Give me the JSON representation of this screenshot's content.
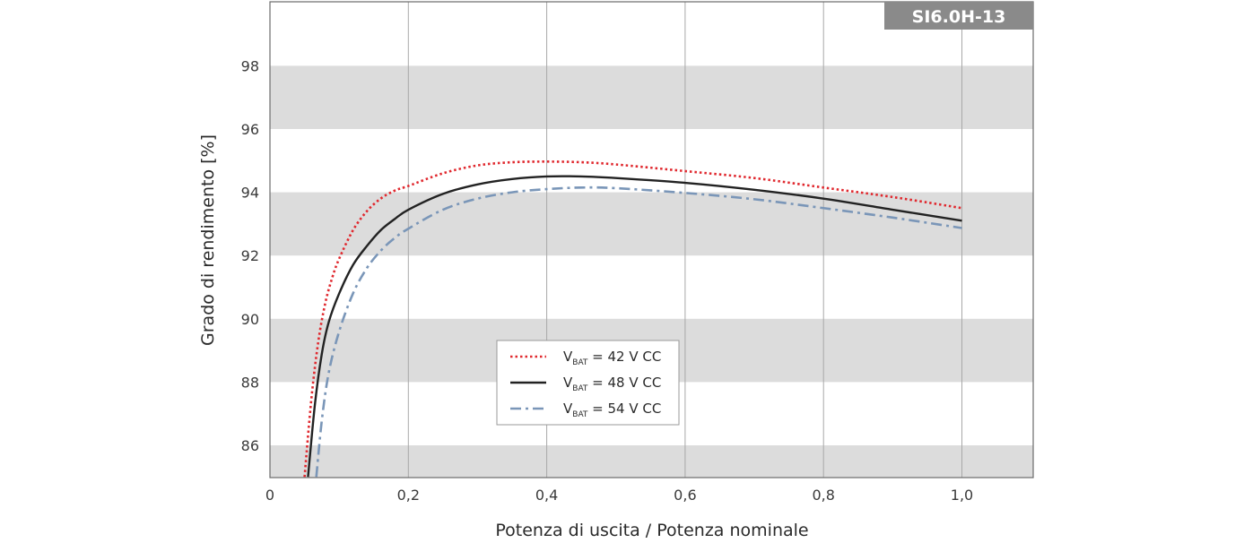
{
  "chart_data": {
    "type": "line",
    "title": "",
    "badge": "SI6.0H-13",
    "xlabel": "Potenza di uscita / Potenza nominale",
    "ylabel": "Grado di rendimento [%]",
    "xlim": [
      0,
      1.1
    ],
    "ylim": [
      85,
      100
    ],
    "x_ticks": [
      0,
      0.2,
      0.4,
      0.6,
      0.8,
      1.0
    ],
    "x_tick_labels": [
      "0",
      "0,2",
      "0,4",
      "0,6",
      "0,8",
      "1,0"
    ],
    "y_ticks": [
      86,
      88,
      90,
      92,
      94,
      96,
      98
    ],
    "y_tick_labels": [
      "86",
      "88",
      "90",
      "92",
      "94",
      "96",
      "98"
    ],
    "grid": "vertical lines, horizontal bands",
    "band_color": "#dcdcdc",
    "legend_position": "center-left",
    "series": [
      {
        "name": "= 42 V CC",
        "label_main": "V",
        "label_sub": "BAT",
        "label_rest": " = 42 V CC",
        "color": "#e0282e",
        "style": "dotted",
        "x": [
          0.05,
          0.06,
          0.07,
          0.08,
          0.09,
          0.1,
          0.12,
          0.14,
          0.16,
          0.18,
          0.2,
          0.25,
          0.3,
          0.35,
          0.4,
          0.45,
          0.5,
          0.6,
          0.7,
          0.8,
          0.9,
          1.0
        ],
        "y": [
          85.0,
          87.5,
          89.3,
          90.5,
          91.3,
          91.9,
          92.8,
          93.4,
          93.8,
          94.05,
          94.2,
          94.6,
          94.85,
          94.95,
          94.97,
          94.95,
          94.88,
          94.67,
          94.45,
          94.15,
          93.85,
          93.5
        ]
      },
      {
        "name": "= 48 V CC",
        "label_main": "V",
        "label_sub": "BAT",
        "label_rest": " = 48 V CC",
        "color": "#222222",
        "style": "solid",
        "x": [
          0.055,
          0.065,
          0.075,
          0.085,
          0.1,
          0.12,
          0.14,
          0.16,
          0.18,
          0.2,
          0.25,
          0.3,
          0.35,
          0.4,
          0.45,
          0.5,
          0.6,
          0.7,
          0.8,
          0.9,
          1.0
        ],
        "y": [
          85.0,
          87.3,
          88.9,
          89.9,
          90.8,
          91.7,
          92.3,
          92.8,
          93.15,
          93.45,
          93.95,
          94.25,
          94.42,
          94.5,
          94.5,
          94.45,
          94.3,
          94.08,
          93.8,
          93.45,
          93.1
        ]
      },
      {
        "name": "= 54 V CC",
        "label_main": "V",
        "label_sub": "BAT",
        "label_rest": " = 54 V CC",
        "color": "#7a96b8",
        "style": "dashdot",
        "x": [
          0.067,
          0.075,
          0.085,
          0.1,
          0.12,
          0.14,
          0.16,
          0.18,
          0.2,
          0.25,
          0.3,
          0.35,
          0.4,
          0.45,
          0.5,
          0.6,
          0.7,
          0.8,
          0.9,
          1.0
        ],
        "y": [
          85.0,
          86.8,
          88.3,
          89.6,
          90.8,
          91.6,
          92.15,
          92.55,
          92.85,
          93.45,
          93.8,
          94.0,
          94.1,
          94.15,
          94.13,
          93.98,
          93.78,
          93.5,
          93.2,
          92.87
        ]
      }
    ]
  }
}
